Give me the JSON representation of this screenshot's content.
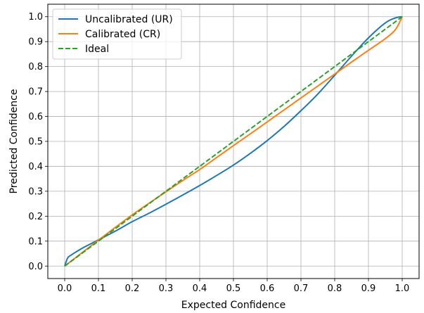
{
  "chart_data": {
    "type": "line",
    "title": "",
    "xlabel": "Expected Confidence",
    "ylabel": "Predicted Confidence",
    "xlim": [
      -0.05,
      1.05
    ],
    "ylim": [
      -0.05,
      1.05
    ],
    "xticks": [
      "0.0",
      "0.1",
      "0.2",
      "0.3",
      "0.4",
      "0.5",
      "0.6",
      "0.7",
      "0.8",
      "0.9",
      "1.0"
    ],
    "yticks": [
      "0.0",
      "0.1",
      "0.2",
      "0.3",
      "0.4",
      "0.5",
      "0.6",
      "0.7",
      "0.8",
      "0.9",
      "1.0"
    ],
    "grid": true,
    "legend_position": "top-left",
    "series": [
      {
        "name": "Uncalibrated (UR)",
        "color": "#1f77b4",
        "style": "solid",
        "x": [
          0.0,
          0.005,
          0.01,
          0.02,
          0.05,
          0.1,
          0.15,
          0.2,
          0.25,
          0.3,
          0.35,
          0.4,
          0.45,
          0.5,
          0.55,
          0.6,
          0.65,
          0.7,
          0.75,
          0.8,
          0.85,
          0.9,
          0.95,
          0.98,
          1.0
        ],
        "y": [
          0.0,
          0.02,
          0.035,
          0.045,
          0.07,
          0.105,
          0.14,
          0.178,
          0.212,
          0.248,
          0.285,
          0.323,
          0.363,
          0.405,
          0.452,
          0.503,
          0.56,
          0.623,
          0.69,
          0.765,
          0.842,
          0.915,
          0.975,
          0.995,
          1.0
        ]
      },
      {
        "name": "Calibrated (CR)",
        "color": "#ff7f0e",
        "style": "solid",
        "x": [
          0.0,
          0.05,
          0.1,
          0.15,
          0.2,
          0.25,
          0.3,
          0.35,
          0.4,
          0.45,
          0.5,
          0.55,
          0.6,
          0.65,
          0.7,
          0.75,
          0.8,
          0.85,
          0.9,
          0.95,
          0.98,
          1.0
        ],
        "y": [
          0.0,
          0.052,
          0.104,
          0.155,
          0.205,
          0.252,
          0.298,
          0.343,
          0.387,
          0.435,
          0.483,
          0.53,
          0.578,
          0.626,
          0.674,
          0.722,
          0.77,
          0.818,
          0.865,
          0.912,
          0.948,
          1.0
        ]
      },
      {
        "name": "Ideal",
        "color": "#2ca02c",
        "style": "dashed",
        "x": [
          0.0,
          1.0
        ],
        "y": [
          0.0,
          1.0
        ]
      }
    ]
  }
}
